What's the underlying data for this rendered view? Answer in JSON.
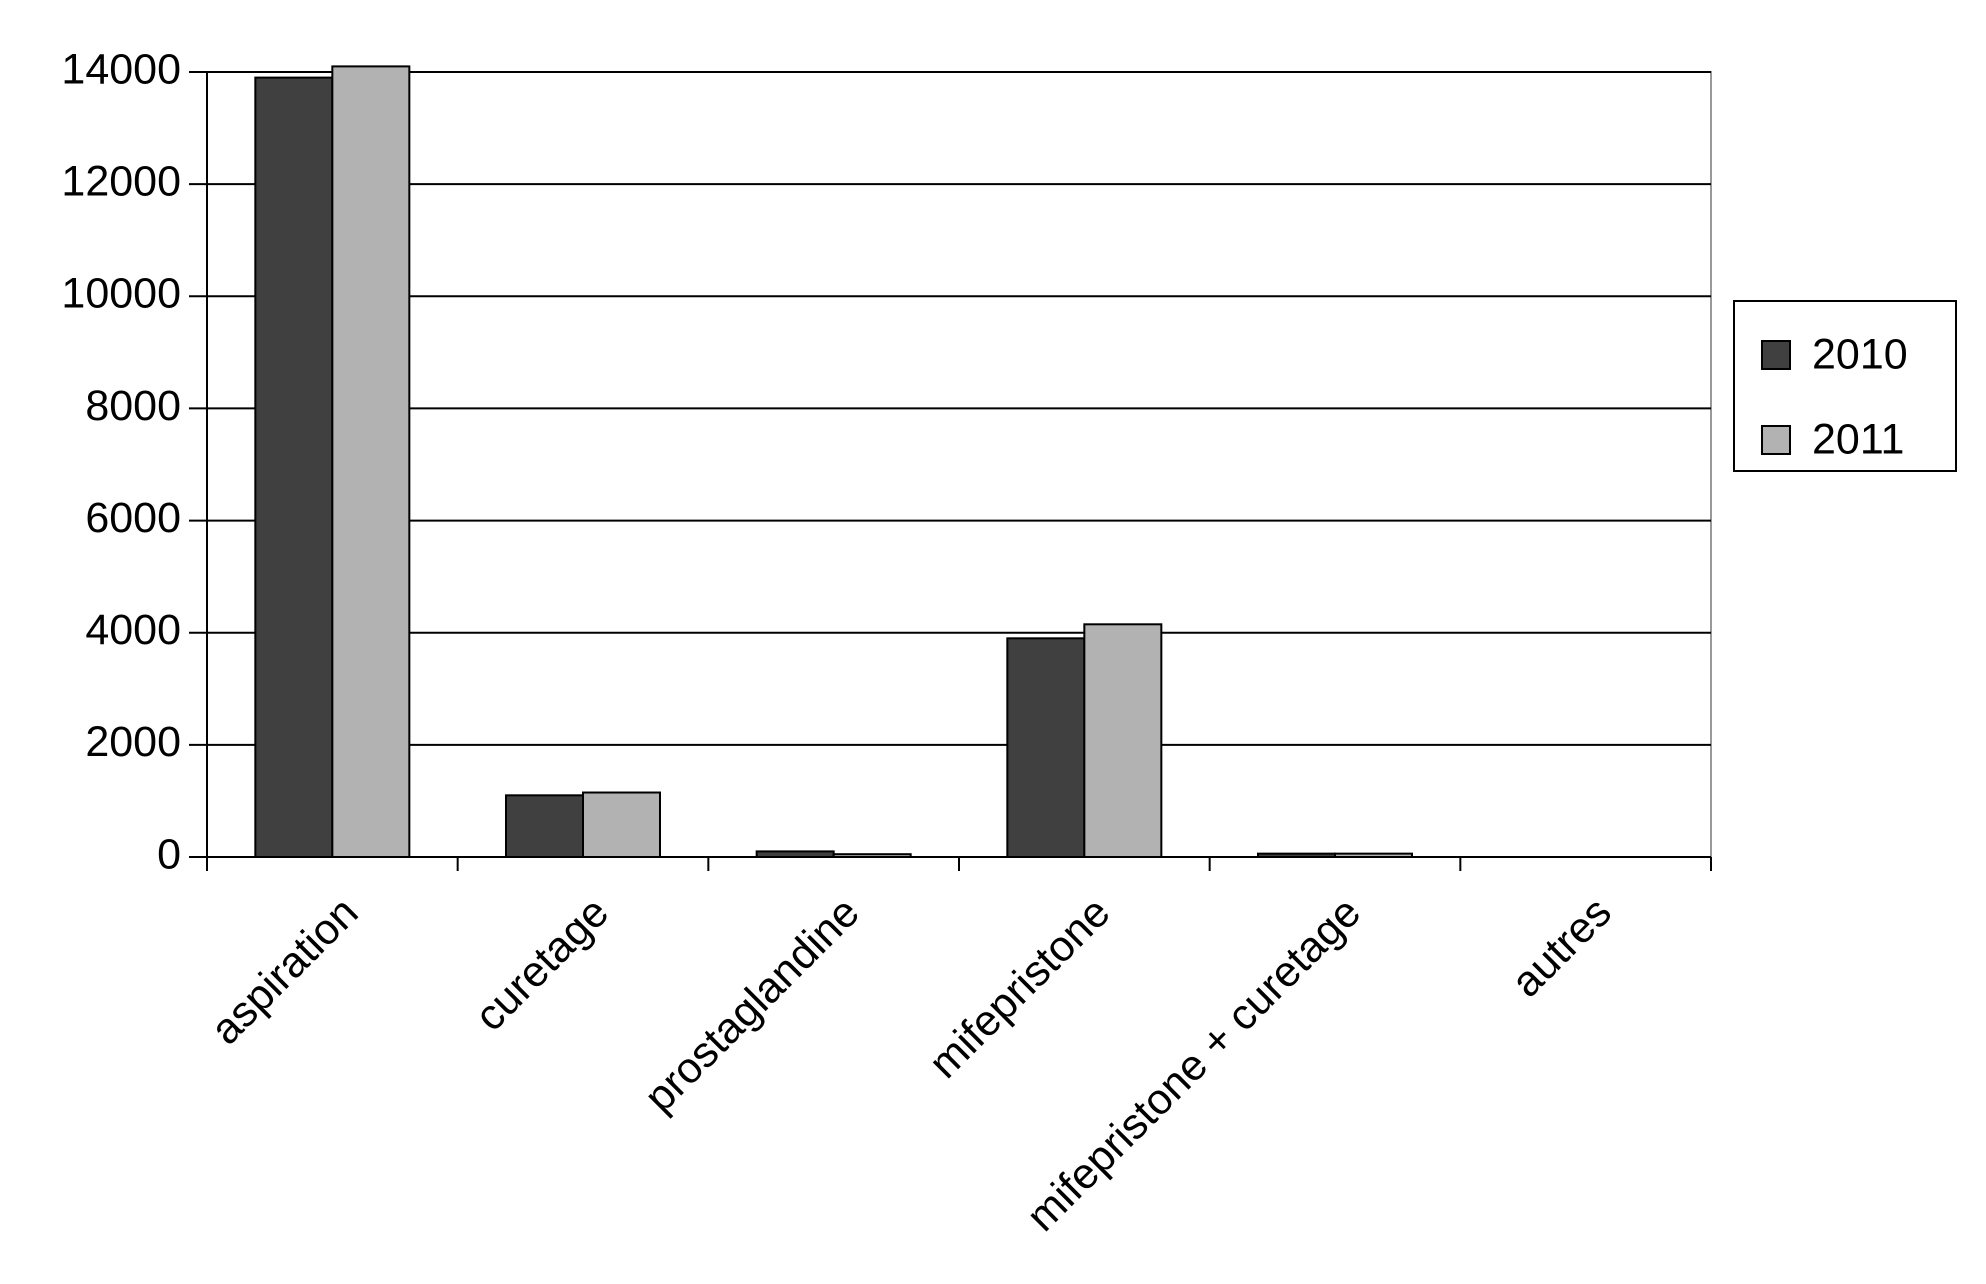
{
  "chart_data": {
    "type": "bar",
    "categories": [
      "aspiration",
      "curetage",
      "prostaglandine",
      "mifepristone",
      "mifepristone + curetage",
      "autres"
    ],
    "series": [
      {
        "name": "2010",
        "color": "#404040",
        "values": [
          13900,
          1100,
          100,
          3900,
          60,
          0
        ]
      },
      {
        "name": "2011",
        "color": "#b2b2b2",
        "values": [
          14100,
          1150,
          50,
          4150,
          60,
          0
        ]
      }
    ],
    "ylim": [
      0,
      14000
    ],
    "yticks": [
      0,
      2000,
      4000,
      6000,
      8000,
      10000,
      12000,
      14000
    ],
    "grid": true,
    "legend": "right"
  }
}
